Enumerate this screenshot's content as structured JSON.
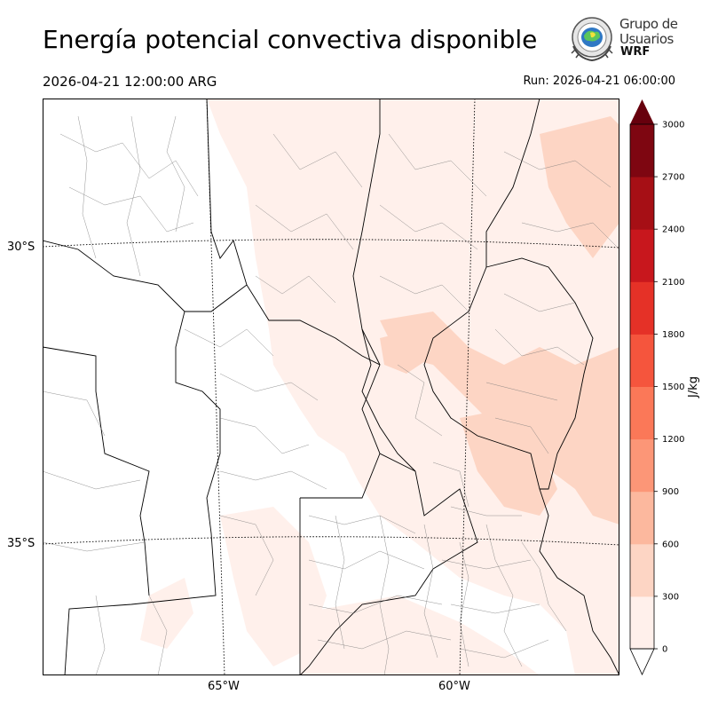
{
  "title": "Energía potencial convectiva disponible",
  "valid_time": "2026-04-21 12:00:00 ARG",
  "run_time": "Run: 2026-04-21 06:00:00",
  "logo": {
    "line1": "Grupo de",
    "line2": "Usuarios",
    "line3": "WRF"
  },
  "axes": {
    "lat_labels": [
      "30°S",
      "35°S"
    ],
    "lon_labels": [
      "65°W",
      "60°W"
    ]
  },
  "colorbar": {
    "label": "J/kg",
    "ticks": [
      "0",
      "300",
      "600",
      "900",
      "1200",
      "1500",
      "1800",
      "2100",
      "2400",
      "2700",
      "3000"
    ],
    "colors": [
      "#fff0eb",
      "#fdd5c4",
      "#fcb89e",
      "#fc9677",
      "#fb7858",
      "#f5553d",
      "#e53127",
      "#c8171d",
      "#a60f15",
      "#7e0611"
    ],
    "over_color": "#67000d",
    "under_color": "#ffffff"
  }
}
